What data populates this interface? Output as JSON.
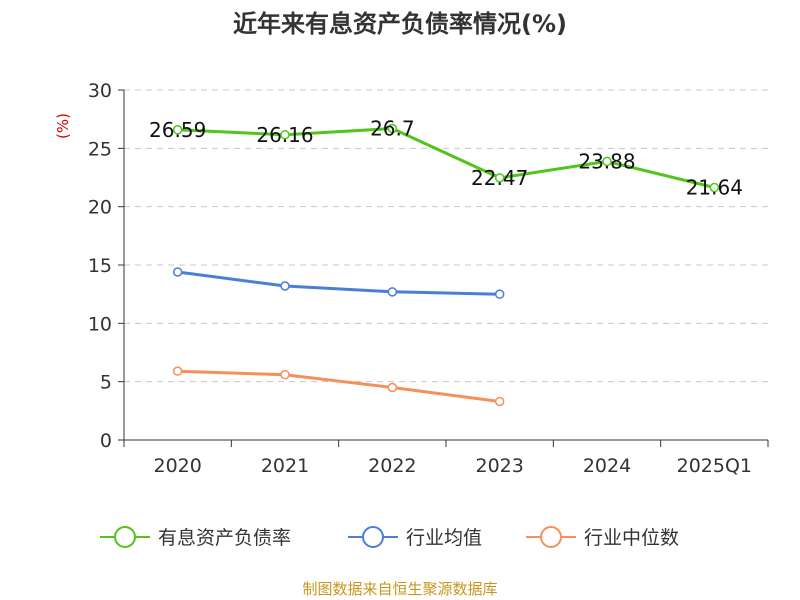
{
  "chart_data": {
    "type": "line",
    "title": "近年来有息资产负债率情况(%)",
    "y_unit": "(%)",
    "categories": [
      "2020",
      "2021",
      "2022",
      "2023",
      "2024",
      "2025Q1"
    ],
    "ylim": [
      0,
      30
    ],
    "y_ticks": [
      0,
      5,
      10,
      15,
      20,
      25,
      30
    ],
    "grid": "horizontal dashed",
    "legend_position": "bottom",
    "series": [
      {
        "name": "有息资产负债率",
        "color": "#52c41a",
        "values": [
          26.59,
          26.16,
          26.7,
          22.47,
          23.88,
          21.64
        ],
        "labels": [
          "26.59",
          "26.16",
          "26.7",
          "22.47",
          "23.88",
          "21.64"
        ]
      },
      {
        "name": "行业均值",
        "color": "#4a7fd6",
        "values": [
          14.4,
          13.2,
          12.7,
          12.5,
          null,
          null
        ]
      },
      {
        "name": "行业中位数",
        "color": "#f5905a",
        "values": [
          5.9,
          5.6,
          4.5,
          3.3,
          null,
          null
        ]
      }
    ],
    "source": "制图数据来自恒生聚源数据库"
  }
}
